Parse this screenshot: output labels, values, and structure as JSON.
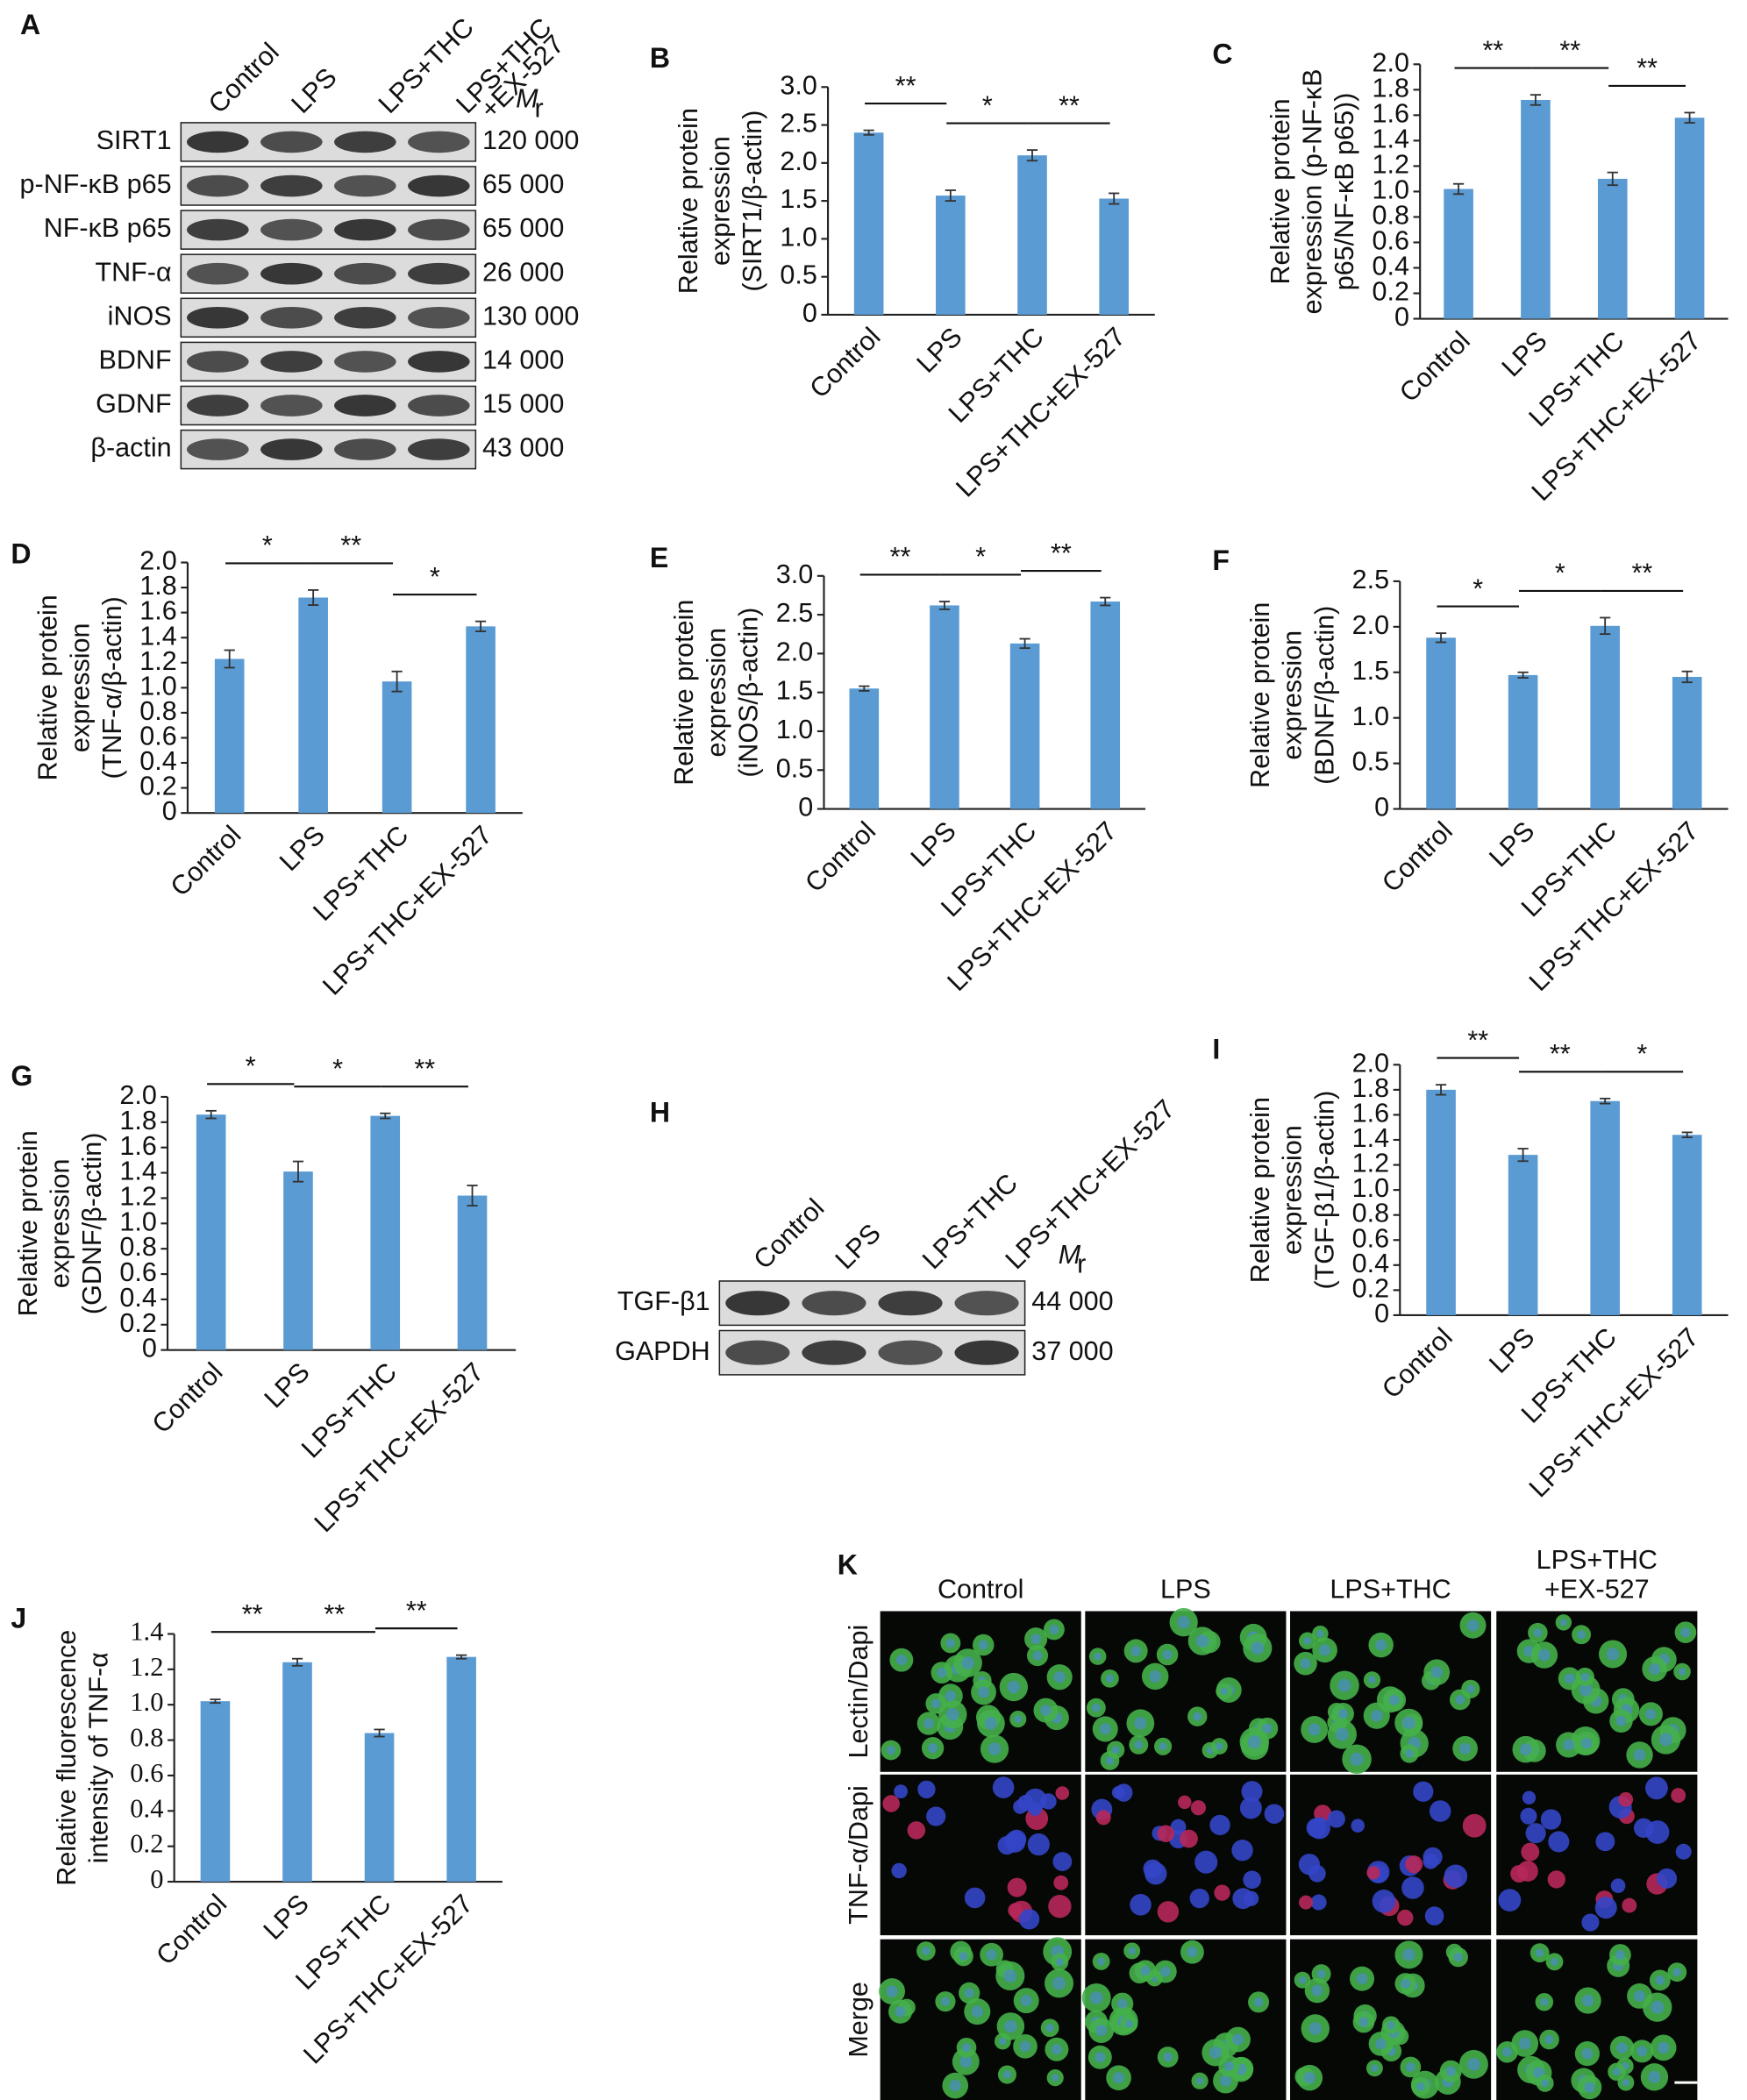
{
  "chart_data": [
    {
      "type": "bar",
      "panel": "B",
      "ylabel": [
        "Relative protein",
        "expression",
        "(SIRT1/β-actin)"
      ],
      "categories": [
        "Control",
        "LPS",
        "LPS+THC",
        "LPS+THC+EX-527"
      ],
      "values": [
        2.4,
        1.57,
        2.1,
        1.53
      ],
      "errors": [
        0.03,
        0.07,
        0.07,
        0.07
      ],
      "color": "#5a9bd3",
      "ylim": [
        0,
        3
      ],
      "yticks": [
        0,
        0.5,
        {
          "value": 1,
          "label": "1.0"
        },
        1.5,
        {
          "value": 2,
          "label": "2.0"
        },
        2.5,
        {
          "value": 3,
          "label": "3.0"
        }
      ],
      "comparisons": [
        {
          "groups": [
            0,
            1
          ],
          "label": "**"
        },
        {
          "groups": [
            1,
            2
          ],
          "label": "*"
        },
        {
          "groups": [
            2,
            3
          ],
          "label": "**"
        }
      ]
    },
    {
      "type": "bar",
      "panel": "C",
      "ylabel": [
        "Relative protein",
        "expression (p-NF-κB",
        "p65/NF-κB p65))"
      ],
      "categories": [
        "Control",
        "LPS",
        "LPS+THC",
        "LPS+THC+EX-527"
      ],
      "values": [
        1.02,
        1.72,
        1.1,
        1.58
      ],
      "errors": [
        0.04,
        0.04,
        0.05,
        0.04
      ],
      "color": "#5a9bd3",
      "ylim": [
        0,
        2
      ],
      "yticks": [
        0,
        0.2,
        0.4,
        0.6,
        0.8,
        {
          "value": 1,
          "label": "1.0"
        },
        1.2,
        1.4,
        1.6,
        1.8,
        {
          "value": 2,
          "label": "2.0"
        }
      ],
      "comparisons": [
        {
          "groups": [
            0,
            1
          ],
          "label": "**"
        },
        {
          "groups": [
            1,
            2
          ],
          "label": "**"
        },
        {
          "groups": [
            2,
            3
          ],
          "label": "**"
        }
      ]
    },
    {
      "type": "bar",
      "panel": "D",
      "ylabel": [
        "Relative protein",
        "expression",
        "(TNF-α/β-actin)"
      ],
      "categories": [
        "Control",
        "LPS",
        "LPS+THC",
        "LPS+THC+EX-527"
      ],
      "values": [
        1.23,
        1.72,
        1.05,
        1.49
      ],
      "errors": [
        0.07,
        0.06,
        0.08,
        0.04
      ],
      "color": "#5a9bd3",
      "ylim": [
        0,
        2
      ],
      "yticks": [
        0,
        0.2,
        0.4,
        0.6,
        0.8,
        {
          "value": 1,
          "label": "1.0"
        },
        1.2,
        1.4,
        1.6,
        1.8,
        {
          "value": 2,
          "label": "2.0"
        }
      ],
      "comparisons": [
        {
          "groups": [
            0,
            1
          ],
          "label": "*"
        },
        {
          "groups": [
            1,
            2
          ],
          "label": "**"
        },
        {
          "groups": [
            2,
            3
          ],
          "label": "*"
        }
      ]
    },
    {
      "type": "bar",
      "panel": "E",
      "ylabel": [
        "Relative protein",
        "expression",
        "(iNOS/β-actin)"
      ],
      "categories": [
        "Control",
        "LPS",
        "LPS+THC",
        "LPS+THC+EX-527"
      ],
      "values": [
        1.55,
        2.62,
        2.13,
        2.67
      ],
      "errors": [
        0.03,
        0.05,
        0.06,
        0.05
      ],
      "color": "#5a9bd3",
      "ylim": [
        0,
        3
      ],
      "yticks": [
        0,
        0.5,
        {
          "value": 1,
          "label": "1.0"
        },
        1.5,
        {
          "value": 2,
          "label": "2.0"
        },
        2.5,
        {
          "value": 3,
          "label": "3.0"
        }
      ],
      "comparisons": [
        {
          "groups": [
            0,
            1
          ],
          "label": "**"
        },
        {
          "groups": [
            1,
            2
          ],
          "label": "*"
        },
        {
          "groups": [
            2,
            3
          ],
          "label": "**"
        }
      ]
    },
    {
      "type": "bar",
      "panel": "F",
      "ylabel": [
        "Relative protein",
        "expression",
        "(BDNF/β-actin)"
      ],
      "categories": [
        "Control",
        "LPS",
        "LPS+THC",
        "LPS+THC+EX-527"
      ],
      "values": [
        1.88,
        1.47,
        2.01,
        1.45
      ],
      "errors": [
        0.05,
        0.03,
        0.09,
        0.06
      ],
      "color": "#5a9bd3",
      "ylim": [
        0,
        2.5
      ],
      "yticks": [
        0,
        0.5,
        {
          "value": 1,
          "label": "1.0"
        },
        1.5,
        {
          "value": 2,
          "label": "2.0"
        },
        2.5
      ],
      "comparisons": [
        {
          "groups": [
            0,
            1
          ],
          "label": "*"
        },
        {
          "groups": [
            1,
            2
          ],
          "label": "*"
        },
        {
          "groups": [
            2,
            3
          ],
          "label": "**"
        }
      ]
    },
    {
      "type": "bar",
      "panel": "G",
      "ylabel": [
        "Relative protein",
        "expression",
        "(GDNF/β-actin)"
      ],
      "categories": [
        "Control",
        "LPS",
        "LPS+THC",
        "LPS+THC+EX-527"
      ],
      "values": [
        1.86,
        1.41,
        1.85,
        1.22
      ],
      "errors": [
        0.03,
        0.08,
        0.02,
        0.08
      ],
      "color": "#5a9bd3",
      "ylim": [
        0,
        2
      ],
      "yticks": [
        0,
        0.2,
        0.4,
        0.6,
        0.8,
        {
          "value": 1,
          "label": "1.0"
        },
        1.2,
        1.4,
        1.6,
        1.8,
        {
          "value": 2,
          "label": "2.0"
        }
      ],
      "comparisons": [
        {
          "groups": [
            0,
            1
          ],
          "label": "*"
        },
        {
          "groups": [
            1,
            2
          ],
          "label": "*"
        },
        {
          "groups": [
            2,
            3
          ],
          "label": "**"
        }
      ]
    },
    {
      "type": "bar",
      "panel": "I",
      "ylabel": [
        "Relative protein",
        "expression",
        "(TGF-β1/β-actin)"
      ],
      "categories": [
        "Control",
        "LPS",
        "LPS+THC",
        "LPS+THC+EX-527"
      ],
      "values": [
        1.8,
        1.28,
        1.71,
        1.44
      ],
      "errors": [
        0.04,
        0.05,
        0.02,
        0.02
      ],
      "color": "#5a9bd3",
      "ylim": [
        0,
        2
      ],
      "yticks": [
        0,
        0.2,
        0.4,
        0.6,
        0.8,
        {
          "value": 1,
          "label": "1.0"
        },
        1.2,
        1.4,
        1.6,
        1.8,
        {
          "value": 2,
          "label": "2.0"
        }
      ],
      "comparisons": [
        {
          "groups": [
            0,
            1
          ],
          "label": "**"
        },
        {
          "groups": [
            1,
            2
          ],
          "label": "**"
        },
        {
          "groups": [
            2,
            3
          ],
          "label": "*"
        }
      ]
    },
    {
      "type": "bar",
      "panel": "J",
      "ylabel": [
        "Relative fluorescence",
        "intensity of TNF-α"
      ],
      "tick_font": "serif",
      "categories": [
        "Control",
        "LPS",
        "LPS+THC",
        "LPS+THC+EX-527"
      ],
      "values": [
        1.02,
        1.24,
        0.84,
        1.27
      ],
      "errors": [
        0.01,
        0.02,
        0.02,
        0.01
      ],
      "color": "#5a9bd3",
      "ylim": [
        0,
        1.4
      ],
      "yticks": [
        0,
        0.2,
        0.4,
        0.6,
        0.8,
        {
          "value": 1,
          "label": "1.0"
        },
        1.2,
        1.4
      ],
      "comparisons": [
        {
          "groups": [
            0,
            1
          ],
          "label": "**"
        },
        {
          "groups": [
            1,
            2
          ],
          "label": "**"
        },
        {
          "groups": [
            2,
            3
          ],
          "label": "**"
        }
      ]
    }
  ],
  "blots": [
    {
      "panel": "A",
      "lanes": [
        "Control",
        "LPS",
        "LPS+THC",
        [
          "LPS+THC",
          "+EX-527"
        ]
      ],
      "mr": {
        "main": "M",
        "sub": "r"
      },
      "rows": [
        {
          "name": "SIRT1",
          "mw": "120 000"
        },
        {
          "name": "p-NF-κB p65",
          "mw": "65 000"
        },
        {
          "name": "NF-κB p65",
          "mw": "65 000"
        },
        {
          "name": "TNF-α",
          "mw": "26 000"
        },
        {
          "name": "iNOS",
          "mw": "130 000"
        },
        {
          "name": "BDNF",
          "mw": "14 000"
        },
        {
          "name": "GDNF",
          "mw": "15 000"
        },
        {
          "name": "β-actin",
          "mw": "43 000"
        }
      ]
    },
    {
      "panel": "H",
      "lanes": [
        "Control",
        "LPS",
        "LPS+THC",
        "LPS+THC+EX-527"
      ],
      "mr": {
        "main": "M",
        "sub": "r"
      },
      "rows": [
        {
          "name": "TGF-β1",
          "mw": "44 000"
        },
        {
          "name": "GAPDH",
          "mw": "37 000"
        }
      ]
    }
  ],
  "micrographs": {
    "panel": "K",
    "columns": [
      "Control",
      "LPS",
      "LPS+THC",
      [
        "LPS+THC",
        "+EX-527"
      ]
    ],
    "rows": [
      "Lectin/Dapi",
      "TNF-α/Dapi",
      "Merge"
    ]
  }
}
